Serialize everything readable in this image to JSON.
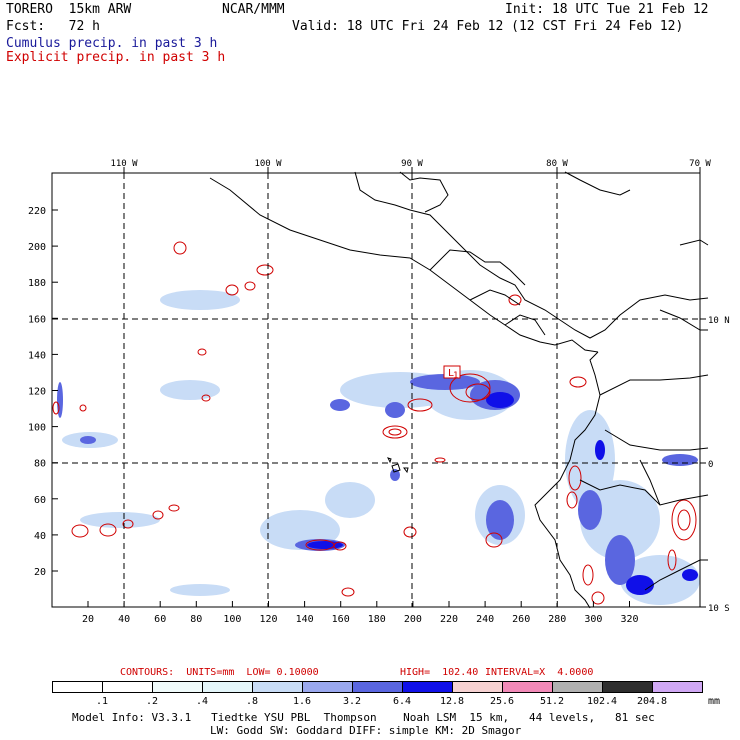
{
  "header": {
    "model": "TORERO  15km ARW",
    "org": "NCAR/MMM",
    "init": "Init: 18 UTC Tue 21 Feb 12",
    "fcst": "Fcst:   72 h",
    "valid": "Valid: 18 UTC Fri 24 Feb 12 (12 CST Fri 24 Feb 12)",
    "line_cumulus": "Cumulus precip. in past 3 h",
    "line_explicit": "Explicit precip. in past 3 h"
  },
  "colors": {
    "cumulus_text": "#1a1a9a",
    "explicit_text": "#d00000",
    "contour": "#d00000",
    "grid": "#000000"
  },
  "map": {
    "lon_labels": [
      "110 W",
      "100 W",
      "90 W",
      "80 W",
      "70 W"
    ],
    "lat_labels": [
      "10 N",
      "0",
      "10 S"
    ],
    "x_ticks": [
      "20",
      "40",
      "60",
      "80",
      "100",
      "120",
      "140",
      "160",
      "180",
      "200",
      "220",
      "240",
      "260",
      "280",
      "300",
      "320"
    ],
    "y_ticks": [
      "20",
      "40",
      "60",
      "80",
      "100",
      "120",
      "140",
      "160",
      "180",
      "200",
      "220"
    ],
    "low_label": "L",
    "low_value": "1"
  },
  "contours_line": {
    "label": "CONTOURS:  UNITS=mm  LOW= 0.10000",
    "high": "HIGH=  102.40",
    "interval": "INTERVAL=X  4.0000"
  },
  "colorbar": {
    "levels": [
      ".1",
      ".2",
      ".4",
      ".8",
      "1.6",
      "3.2",
      "6.4",
      "12.8",
      "25.6",
      "51.2",
      "102.4",
      "204.8"
    ],
    "colors": [
      "#ffffff",
      "#ffffff",
      "#f0fbfb",
      "#e4f6fa",
      "#c8dcf6",
      "#9aa8ee",
      "#5a66e0",
      "#1010e8",
      "#f6d2d2",
      "#f28ab8",
      "#b0b0b0",
      "#2e2e2e",
      "#d0a8f4"
    ],
    "unit": "mm"
  },
  "footer": {
    "line1": "Model Info: V3.3.1   Tiedtke YSU PBL  Thompson    Noah LSM  15 km,   44 levels,   81 sec",
    "line2": "LW: Godd SW: Goddard DIFF: simple KM: 2D Smagor"
  }
}
